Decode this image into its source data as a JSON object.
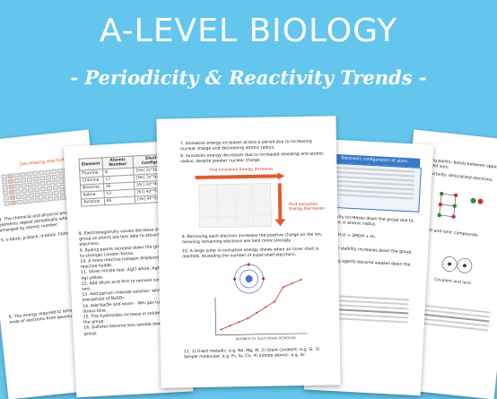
{
  "header": {
    "title": "A-LEVEL BIOLOGY",
    "subtitle": "- Periodicity & Reactivity Trends -"
  },
  "page_main": {
    "table_headers": [
      "Element",
      "Atomic Number",
      "Electronic Configuration"
    ],
    "table_rows": [
      [
        "Fluorine",
        "9"
      ],
      [
        "Chlorine",
        "17"
      ],
      [
        "Bromine",
        "35"
      ],
      [
        "Iodine",
        "53"
      ],
      [
        "Astatine",
        "85"
      ]
    ],
    "item7": "7. Ionisation energy increases across a period due to increasing nuclear charge and decreasing atomic radius.",
    "item8": "8. Ionisation energy decreases due to increased shielding and atomic radius, despite greater nuclear charge.",
    "chart_label_top": "First Ionisation Energy Increases",
    "chart_label_side": "First Ionisation Energy Decreases",
    "item9": "9. Removing each electron increases the positive charge on the ion, meaning remaining electrons are held more strongly.",
    "item10": "10. A large jump in ionisation energy shows when an inner shell is reached, revealing the number of outer-shell electrons.",
    "item11": "11. 1) Giant metallic: e.g. Na, Mg, Al. 2) Giant covalent: e.g. Si. 3) Simple molecular: e.g. P₄, S₈, Cl₂. 4) Simple atomic: e.g. Ar.",
    "graph_xlabel": "NUMBER OF ELECTRONS REMOVED"
  },
  "page_left2": {
    "items": [
      "8. Electronegativity values decrease down the group as atoms are less able to attract electrons.",
      "9. Boiling points increase down the group due to stronger London forces.",
      "10. A more reactive halogen displaces a less reactive halide.",
      "11. Silver nitrate test: AgCl white, AgBr cream, AgI yellow.",
      "12. Add dilute acid first to remove carbonate ions.",
      "13. Add barium chloride solution: white precipitate of BaSO₄.",
      "14. Add NaOH and warm - NH₃ gas turns red litmus blue.",
      "15. The hydroxides increase in solubility down the group.",
      "16. Sulfates become less soluble down the group."
    ]
  },
  "page_right2": {
    "header": "Electronic configuration of atom",
    "items": [
      "Reactivity increases down the group due to increase in atomic radius.",
      "2M + 2H₂O → 2MOH + H₂.",
      "Thermal stability increases down the group.",
      "Oxidising agents become weaker down the group."
    ]
  },
  "page_left1": {
    "label": "Decreasing reactivity",
    "items": [
      "4. The chemical and physical properties of elements repeat periodically when arranged by atomic number.",
      "5. s-block, p-block, d-block, f-block.",
      "6. The energy required to remove one mole of electrons from gaseous atoms."
    ]
  },
  "page_right1": {
    "items": [
      "Melting points: bonds between oppositely charged ions.",
      "Conductivity: delocalised electrons.",
      "Covalent and ionic compounds."
    ],
    "diagram_label": "Covalent and ionic"
  }
}
